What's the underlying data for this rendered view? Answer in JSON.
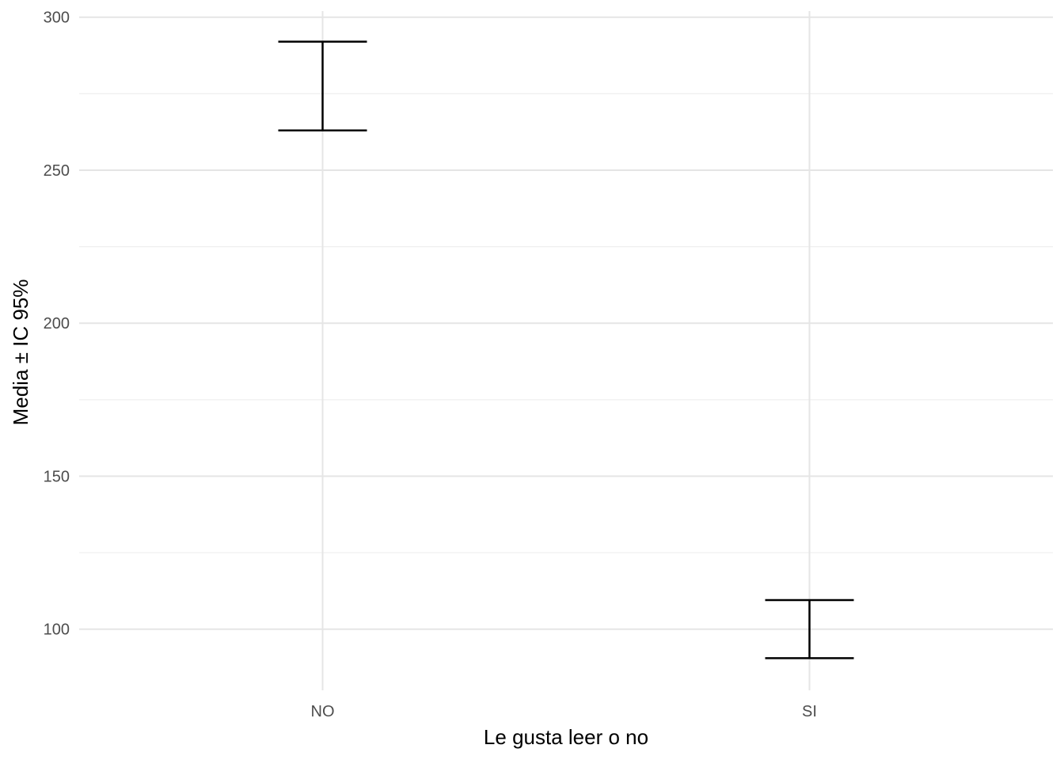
{
  "chart_data": {
    "type": "errorbar",
    "xlabel": "Le gusta leer o no",
    "ylabel": "Media ± IC 95%",
    "categories": [
      "NO",
      "SI"
    ],
    "lower": [
      263,
      90.5
    ],
    "upper": [
      292,
      109.5
    ],
    "ylim": [
      80,
      302
    ],
    "yticks": [
      100,
      150,
      200,
      250,
      300
    ],
    "grid": true,
    "legend": "none",
    "colors": {
      "errorbar": "#000000",
      "grid": "#e5e5e5",
      "background": "#ffffff",
      "tick_label": "#4d4d4d"
    }
  }
}
